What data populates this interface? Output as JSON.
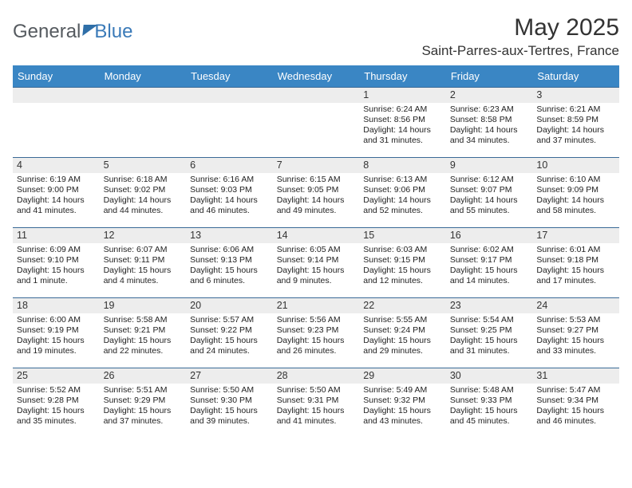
{
  "brand": {
    "part1": "General",
    "part2": "Blue"
  },
  "title": "May 2025",
  "location": "Saint-Parres-aux-Tertres, France",
  "colors": {
    "header_bg": "#3a86c4",
    "header_text": "#ffffff",
    "row_border": "#3a6a97",
    "band_bg": "#ededed",
    "logo_gray": "#555a5f",
    "logo_blue": "#3a7ab8"
  },
  "days_of_week": [
    "Sunday",
    "Monday",
    "Tuesday",
    "Wednesday",
    "Thursday",
    "Friday",
    "Saturday"
  ],
  "weeks": [
    [
      {
        "n": ""
      },
      {
        "n": ""
      },
      {
        "n": ""
      },
      {
        "n": ""
      },
      {
        "n": "1",
        "sr": "6:24 AM",
        "ss": "8:56 PM",
        "dl": "14 hours and 31 minutes."
      },
      {
        "n": "2",
        "sr": "6:23 AM",
        "ss": "8:58 PM",
        "dl": "14 hours and 34 minutes."
      },
      {
        "n": "3",
        "sr": "6:21 AM",
        "ss": "8:59 PM",
        "dl": "14 hours and 37 minutes."
      }
    ],
    [
      {
        "n": "4",
        "sr": "6:19 AM",
        "ss": "9:00 PM",
        "dl": "14 hours and 41 minutes."
      },
      {
        "n": "5",
        "sr": "6:18 AM",
        "ss": "9:02 PM",
        "dl": "14 hours and 44 minutes."
      },
      {
        "n": "6",
        "sr": "6:16 AM",
        "ss": "9:03 PM",
        "dl": "14 hours and 46 minutes."
      },
      {
        "n": "7",
        "sr": "6:15 AM",
        "ss": "9:05 PM",
        "dl": "14 hours and 49 minutes."
      },
      {
        "n": "8",
        "sr": "6:13 AM",
        "ss": "9:06 PM",
        "dl": "14 hours and 52 minutes."
      },
      {
        "n": "9",
        "sr": "6:12 AM",
        "ss": "9:07 PM",
        "dl": "14 hours and 55 minutes."
      },
      {
        "n": "10",
        "sr": "6:10 AM",
        "ss": "9:09 PM",
        "dl": "14 hours and 58 minutes."
      }
    ],
    [
      {
        "n": "11",
        "sr": "6:09 AM",
        "ss": "9:10 PM",
        "dl": "15 hours and 1 minute."
      },
      {
        "n": "12",
        "sr": "6:07 AM",
        "ss": "9:11 PM",
        "dl": "15 hours and 4 minutes."
      },
      {
        "n": "13",
        "sr": "6:06 AM",
        "ss": "9:13 PM",
        "dl": "15 hours and 6 minutes."
      },
      {
        "n": "14",
        "sr": "6:05 AM",
        "ss": "9:14 PM",
        "dl": "15 hours and 9 minutes."
      },
      {
        "n": "15",
        "sr": "6:03 AM",
        "ss": "9:15 PM",
        "dl": "15 hours and 12 minutes."
      },
      {
        "n": "16",
        "sr": "6:02 AM",
        "ss": "9:17 PM",
        "dl": "15 hours and 14 minutes."
      },
      {
        "n": "17",
        "sr": "6:01 AM",
        "ss": "9:18 PM",
        "dl": "15 hours and 17 minutes."
      }
    ],
    [
      {
        "n": "18",
        "sr": "6:00 AM",
        "ss": "9:19 PM",
        "dl": "15 hours and 19 minutes."
      },
      {
        "n": "19",
        "sr": "5:58 AM",
        "ss": "9:21 PM",
        "dl": "15 hours and 22 minutes."
      },
      {
        "n": "20",
        "sr": "5:57 AM",
        "ss": "9:22 PM",
        "dl": "15 hours and 24 minutes."
      },
      {
        "n": "21",
        "sr": "5:56 AM",
        "ss": "9:23 PM",
        "dl": "15 hours and 26 minutes."
      },
      {
        "n": "22",
        "sr": "5:55 AM",
        "ss": "9:24 PM",
        "dl": "15 hours and 29 minutes."
      },
      {
        "n": "23",
        "sr": "5:54 AM",
        "ss": "9:25 PM",
        "dl": "15 hours and 31 minutes."
      },
      {
        "n": "24",
        "sr": "5:53 AM",
        "ss": "9:27 PM",
        "dl": "15 hours and 33 minutes."
      }
    ],
    [
      {
        "n": "25",
        "sr": "5:52 AM",
        "ss": "9:28 PM",
        "dl": "15 hours and 35 minutes."
      },
      {
        "n": "26",
        "sr": "5:51 AM",
        "ss": "9:29 PM",
        "dl": "15 hours and 37 minutes."
      },
      {
        "n": "27",
        "sr": "5:50 AM",
        "ss": "9:30 PM",
        "dl": "15 hours and 39 minutes."
      },
      {
        "n": "28",
        "sr": "5:50 AM",
        "ss": "9:31 PM",
        "dl": "15 hours and 41 minutes."
      },
      {
        "n": "29",
        "sr": "5:49 AM",
        "ss": "9:32 PM",
        "dl": "15 hours and 43 minutes."
      },
      {
        "n": "30",
        "sr": "5:48 AM",
        "ss": "9:33 PM",
        "dl": "15 hours and 45 minutes."
      },
      {
        "n": "31",
        "sr": "5:47 AM",
        "ss": "9:34 PM",
        "dl": "15 hours and 46 minutes."
      }
    ]
  ],
  "labels": {
    "sunrise": "Sunrise: ",
    "sunset": "Sunset: ",
    "daylight": "Daylight: "
  }
}
